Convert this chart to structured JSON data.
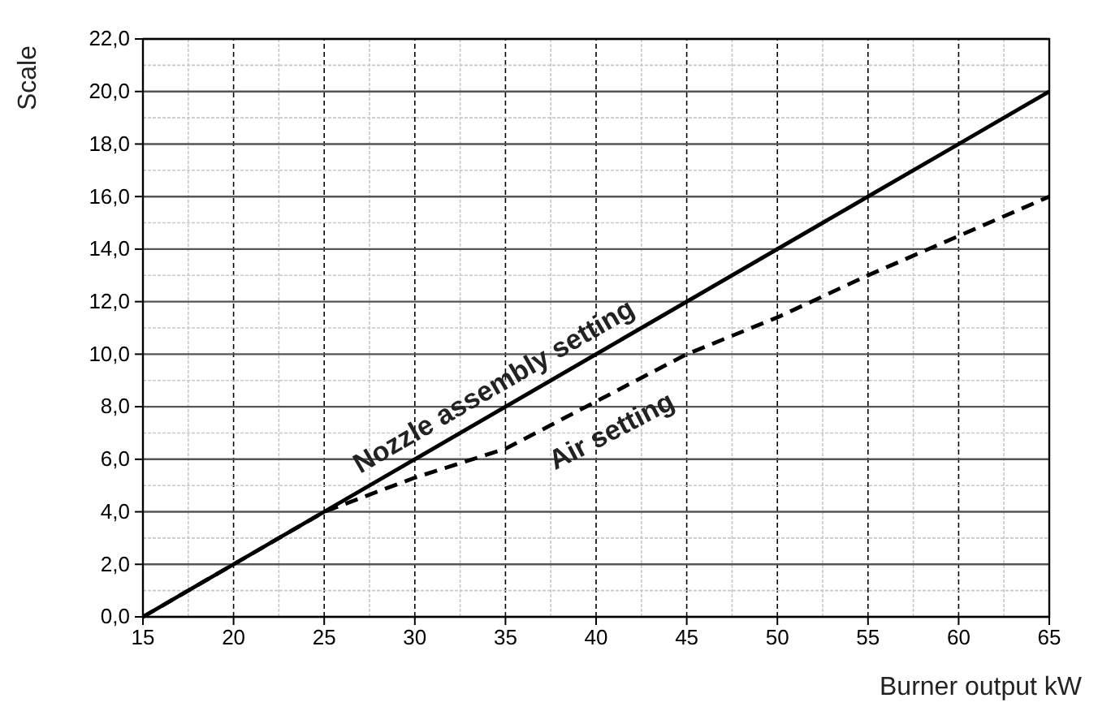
{
  "chart_data": {
    "type": "line",
    "xlabel": "Burner output kW",
    "ylabel": "Scale",
    "x": [
      15,
      20,
      25,
      30,
      35,
      40,
      45,
      50,
      55,
      60,
      65
    ],
    "series": [
      {
        "color": "#000000",
        "line_style": "solid",
        "values": [
          0,
          2,
          4,
          6,
          8,
          10,
          12,
          14,
          16,
          18,
          20
        ]
      },
      {
        "color": "#000000",
        "line_style": "dashed",
        "values": [
          0,
          2,
          4,
          5.3,
          6.4,
          8.2,
          10,
          11.4,
          13,
          14.5,
          16
        ]
      }
    ],
    "xlim": [
      15,
      65
    ],
    "xticks": [
      15,
      20,
      25,
      30,
      35,
      40,
      45,
      50,
      55,
      60,
      65
    ],
    "ylim": [
      0,
      22
    ],
    "yticks": [
      {
        "value": 0,
        "label": "0,0"
      },
      {
        "value": 2,
        "label": "2,0"
      },
      {
        "value": 4,
        "label": "4,0"
      },
      {
        "value": 6,
        "label": "6,0"
      },
      {
        "value": 8,
        "label": "8,0"
      },
      {
        "value": 10,
        "label": "10,0"
      },
      {
        "value": 12,
        "label": "12,0"
      },
      {
        "value": 14,
        "label": "14,0"
      },
      {
        "value": 16,
        "label": "16,0"
      },
      {
        "value": 18,
        "label": "18,0"
      },
      {
        "value": 20,
        "label": "20,0"
      },
      {
        "value": 22,
        "label": "22,0"
      }
    ],
    "grid": true,
    "marker": "none",
    "annotations": [
      {
        "text": "Nozzle assembly setting",
        "x": 35,
        "y": 8
      },
      {
        "text": "Air setting",
        "x": 40,
        "y": 8.2
      }
    ]
  }
}
